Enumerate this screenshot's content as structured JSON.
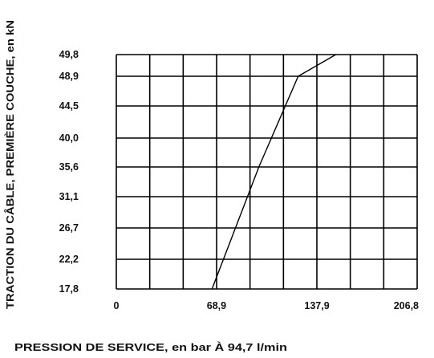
{
  "chart_data": {
    "type": "line",
    "title": "",
    "xlabel": "PRESSION DE SERVICE, en bar À 94,7 l/min",
    "ylabel": "TRACTION DU CÂBLE, PREMIÈRE COUCHE, en kN",
    "x_tick_labels": [
      "0",
      "68,9",
      "137,9",
      "206,8"
    ],
    "x_tick_values": [
      0,
      68.9,
      137.9,
      206.8
    ],
    "y_tick_labels": [
      "17,8",
      "22,2",
      "26,7",
      "31,1",
      "35,6",
      "40,0",
      "44,5",
      "48,9",
      "49,8"
    ],
    "y_tick_values": [
      17.8,
      22.2,
      26.7,
      31.1,
      35.6,
      40.0,
      44.5,
      48.9,
      49.8
    ],
    "xlim": [
      0,
      206.8
    ],
    "ylim": [
      17.8,
      49.8
    ],
    "x_gridlines": [
      0,
      22.98,
      45.96,
      68.93,
      91.91,
      114.89,
      137.87,
      160.84,
      183.82,
      206.8
    ],
    "grid": true,
    "series": [
      {
        "x": [
          65.8,
          98.0,
          125.0,
          150.9
        ],
        "y": [
          17.8,
          35.6,
          48.9,
          49.8
        ]
      }
    ]
  }
}
